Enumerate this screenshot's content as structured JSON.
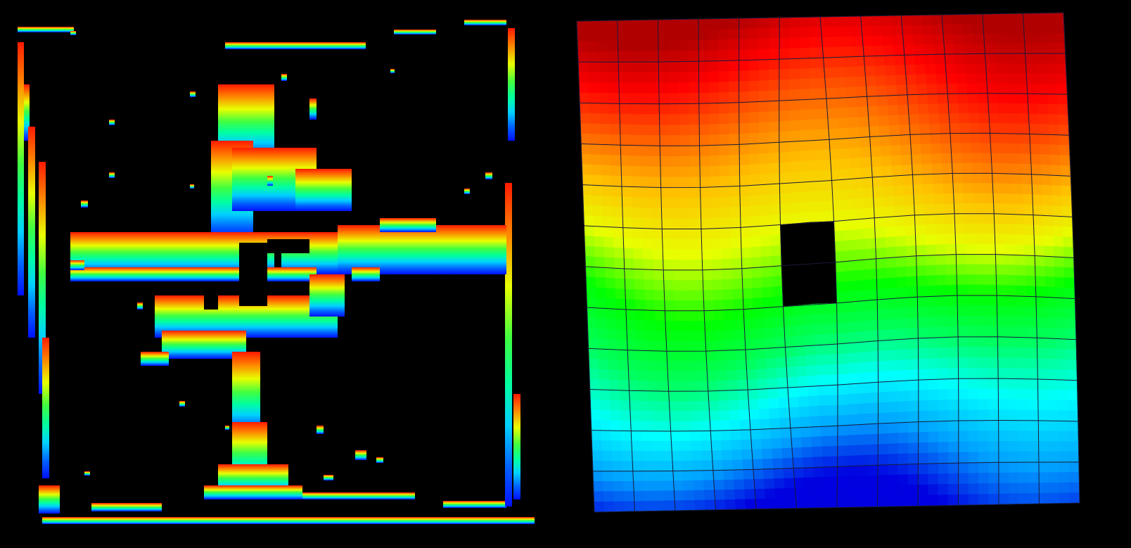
{
  "left_panel": {
    "icon": "sparse-depth-scan-image",
    "colormap": [
      "#0000ff",
      "#00ffff",
      "#00ff40",
      "#ffff00",
      "#ff8000",
      "#ff0000"
    ]
  },
  "right_panel": {
    "icon": "deformed-grid-heightmap-image",
    "grid_columns": 12,
    "grid_rows": 12,
    "hole_column": 5,
    "hole_rows": [
      5,
      6
    ],
    "colormap": [
      "#0000e0",
      "#00a0ff",
      "#00ffff",
      "#00ff60",
      "#00ff00",
      "#e8ff00",
      "#ffc000",
      "#ff6000",
      "#ff0000",
      "#b00000"
    ],
    "mesh_line_color": "#1a1a3a"
  }
}
